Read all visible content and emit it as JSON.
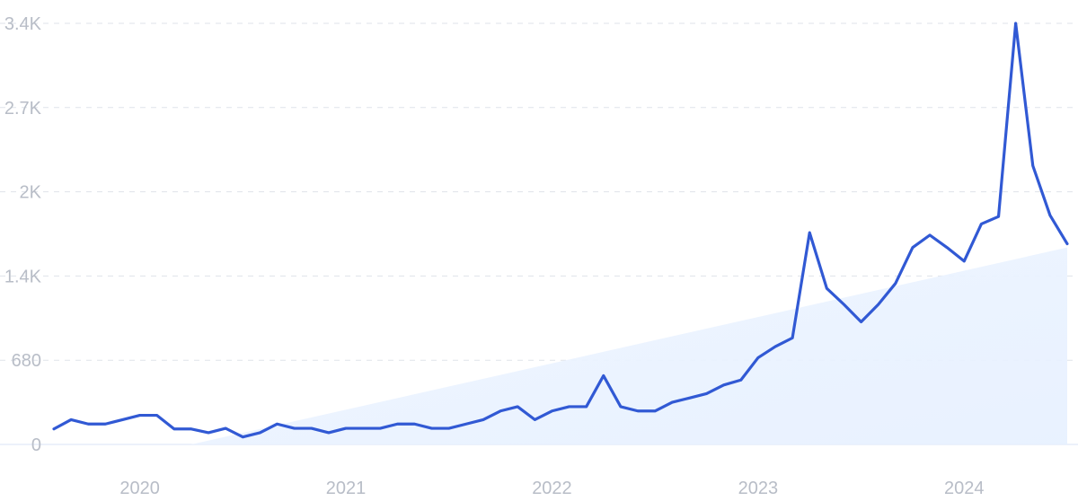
{
  "chart_data": {
    "type": "line",
    "title": "",
    "xlabel": "",
    "ylabel": "",
    "grid": true,
    "legend": "none",
    "colors": {
      "line": "#3159d4",
      "trend_fill": "#eaf2fe",
      "grid": "#dfe3ea",
      "tick_label": "#b8bdc7"
    },
    "x_ticks": [
      "2020",
      "2021",
      "2022",
      "2023",
      "2024"
    ],
    "y_ticks": [
      "0",
      "680",
      "1.4K",
      "2K",
      "2.7K",
      "3.4K"
    ],
    "y_tick_values": [
      0,
      680,
      1360,
      2040,
      2720,
      3400
    ],
    "ylim": [
      0,
      3400
    ],
    "xlim": [
      "2019-08",
      "2024-07"
    ],
    "series": [
      {
        "x": [
          "2019-08",
          "2019-09",
          "2019-10",
          "2019-11",
          "2019-12",
          "2020-01",
          "2020-02",
          "2020-03",
          "2020-04",
          "2020-05",
          "2020-06",
          "2020-07",
          "2020-08",
          "2020-09",
          "2020-10",
          "2020-11",
          "2020-12",
          "2021-01",
          "2021-02",
          "2021-03",
          "2021-04",
          "2021-05",
          "2021-06",
          "2021-07",
          "2021-08",
          "2021-09",
          "2021-10",
          "2021-11",
          "2021-12",
          "2022-01",
          "2022-02",
          "2022-03",
          "2022-04",
          "2022-05",
          "2022-06",
          "2022-07",
          "2022-08",
          "2022-09",
          "2022-10",
          "2022-11",
          "2022-12",
          "2023-01",
          "2023-02",
          "2023-03",
          "2023-04",
          "2023-05",
          "2023-06",
          "2023-07",
          "2023-08",
          "2023-09",
          "2023-10",
          "2023-11",
          "2023-12",
          "2024-01",
          "2024-02",
          "2024-03",
          "2024-04",
          "2024-05",
          "2024-06",
          "2024-07"
        ],
        "values": [
          125,
          200,
          165,
          165,
          200,
          235,
          235,
          125,
          125,
          95,
          130,
          60,
          95,
          165,
          130,
          130,
          95,
          130,
          130,
          130,
          165,
          165,
          130,
          130,
          165,
          200,
          270,
          305,
          200,
          270,
          305,
          305,
          555,
          305,
          270,
          270,
          340,
          375,
          410,
          480,
          520,
          700,
          790,
          860,
          1710,
          1260,
          1130,
          990,
          1130,
          1300,
          1590,
          1690,
          1590,
          1480,
          1780,
          1840,
          3400,
          2250,
          1850,
          1620
        ]
      }
    ],
    "trend": {
      "x": [
        "2020-04",
        "2024-07"
      ],
      "values": [
        0,
        1590
      ]
    }
  }
}
